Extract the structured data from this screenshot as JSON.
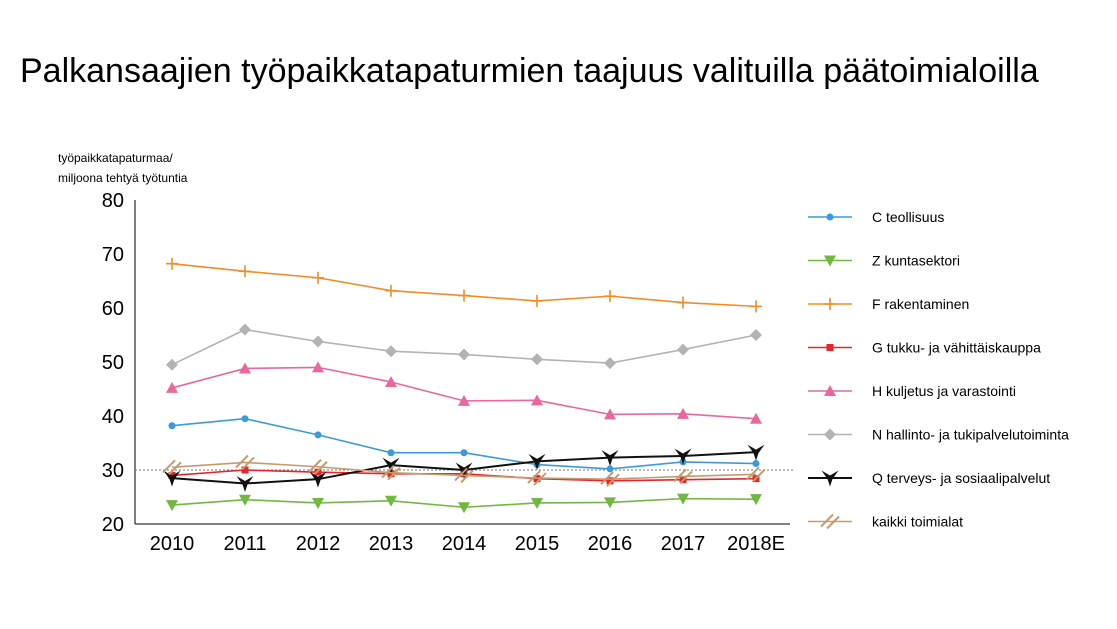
{
  "chart_data": {
    "type": "line",
    "title": "Palkansaajien työpaikkatapaturmien taajuus valituilla päätoimialoilla",
    "ylabel_lines": [
      "työpaikkatapaturmaa/",
      "miljoona tehtyä työtuntia"
    ],
    "xlabel": "",
    "categories": [
      "2010",
      "2011",
      "2012",
      "2013",
      "2014",
      "2015",
      "2016",
      "2017",
      "2018E"
    ],
    "ylim": [
      20,
      80
    ],
    "yticks": [
      20,
      30,
      40,
      50,
      60,
      70,
      80
    ],
    "reference_line": 30,
    "grid": false,
    "legend_position": "right",
    "series": [
      {
        "name": "C teollisuus",
        "color": "#3d9ad9",
        "marker": "circle",
        "values": [
          38.2,
          39.5,
          36.5,
          33.2,
          33.2,
          31.0,
          30.2,
          31.5,
          31.2
        ]
      },
      {
        "name": "Z kuntasektori",
        "color": "#72b73f",
        "marker": "triangle-down",
        "values": [
          23.5,
          24.5,
          23.9,
          24.3,
          23.1,
          23.9,
          24.0,
          24.7,
          24.6
        ]
      },
      {
        "name": "F rakentaminen",
        "color": "#f28c28",
        "marker": "plus",
        "values": [
          68.2,
          66.8,
          65.6,
          63.2,
          62.3,
          61.3,
          62.2,
          61.0,
          60.3
        ]
      },
      {
        "name": "G tukku- ja vähittäiskauppa",
        "color": "#e5262b",
        "marker": "square",
        "values": [
          29.0,
          30.0,
          29.6,
          29.3,
          29.3,
          28.4,
          28.0,
          28.2,
          28.4
        ]
      },
      {
        "name": "H kuljetus ja varastointi",
        "color": "#e8689e",
        "marker": "triangle-up",
        "values": [
          45.2,
          48.8,
          49.0,
          46.3,
          42.8,
          42.9,
          40.3,
          40.4,
          39.5
        ]
      },
      {
        "name": "N hallinto- ja tukipalvelutoiminta",
        "color": "#b3b3b3",
        "marker": "diamond",
        "values": [
          49.5,
          56.0,
          53.8,
          52.0,
          51.4,
          50.5,
          49.8,
          52.3,
          55.0
        ]
      },
      {
        "name": "Q terveys- ja sosiaalipalvelut",
        "color": "#111111",
        "marker": "star",
        "values": [
          28.5,
          27.5,
          28.3,
          30.9,
          30.0,
          31.6,
          32.3,
          32.6,
          33.3
        ]
      },
      {
        "name": "kaikki toimialat",
        "color": "#c59a6d",
        "marker": "slash",
        "values": [
          30.5,
          31.4,
          30.6,
          29.5,
          29.0,
          28.5,
          28.3,
          28.8,
          29.2
        ]
      }
    ]
  }
}
